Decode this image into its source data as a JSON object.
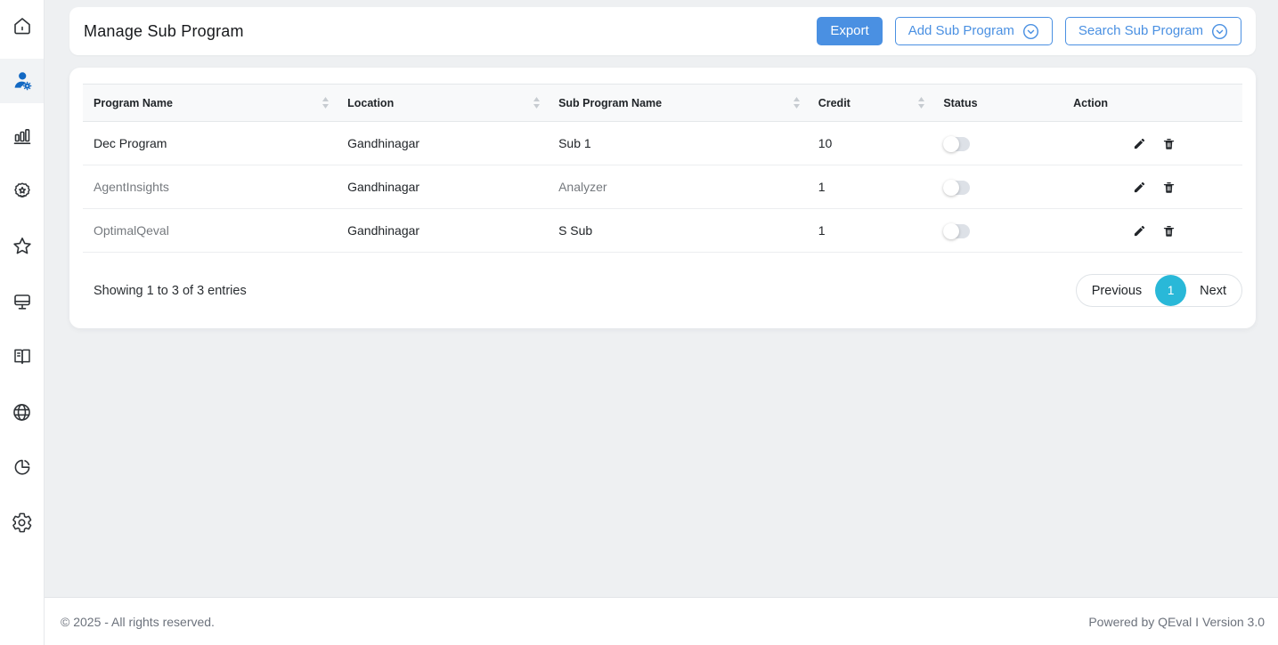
{
  "sidebar": {
    "items": [
      {
        "name": "home",
        "active": false
      },
      {
        "name": "user-management",
        "active": true
      },
      {
        "name": "bar-chart",
        "active": false
      },
      {
        "name": "award-badge",
        "active": false
      },
      {
        "name": "star",
        "active": false
      },
      {
        "name": "monitor",
        "active": false
      },
      {
        "name": "open-book",
        "active": false
      },
      {
        "name": "globe",
        "active": false
      },
      {
        "name": "pie-chart",
        "active": false
      },
      {
        "name": "settings",
        "active": false
      }
    ]
  },
  "header": {
    "title": "Manage Sub Program",
    "export_label": "Export",
    "add_label": "Add Sub Program",
    "search_label": "Search Sub Program"
  },
  "table": {
    "columns": [
      {
        "label": "Program Name",
        "sortable": true
      },
      {
        "label": "Location",
        "sortable": true
      },
      {
        "label": "Sub Program Name",
        "sortable": true
      },
      {
        "label": "Credit",
        "sortable": true
      },
      {
        "label": "Status",
        "sortable": false
      },
      {
        "label": "Action",
        "sortable": false
      }
    ],
    "rows": [
      {
        "program_name": "Dec Program",
        "location": "Gandhinagar",
        "sub_program_name": "Sub 1",
        "credit": "10",
        "status_on": false,
        "program_muted": false,
        "sub_muted": false
      },
      {
        "program_name": "AgentInsights",
        "location": "Gandhinagar",
        "sub_program_name": "Analyzer",
        "credit": "1",
        "status_on": false,
        "program_muted": true,
        "sub_muted": true
      },
      {
        "program_name": "OptimalQeval",
        "location": "Gandhinagar",
        "sub_program_name": "S Sub",
        "credit": "1",
        "status_on": false,
        "program_muted": true,
        "sub_muted": false
      }
    ],
    "summary": "Showing 1 to 3 of 3 entries"
  },
  "pagination": {
    "previous_label": "Previous",
    "current_page": "1",
    "next_label": "Next"
  },
  "footer": {
    "copyright": "© 2025 - All rights reserved.",
    "powered_by": "Powered by QEval I Version 3.0"
  },
  "colors": {
    "accent_blue": "#4a90e2",
    "active_icon_blue": "#1268c3",
    "pagination_cyan": "#29b8d8",
    "background": "#eef0f2"
  }
}
